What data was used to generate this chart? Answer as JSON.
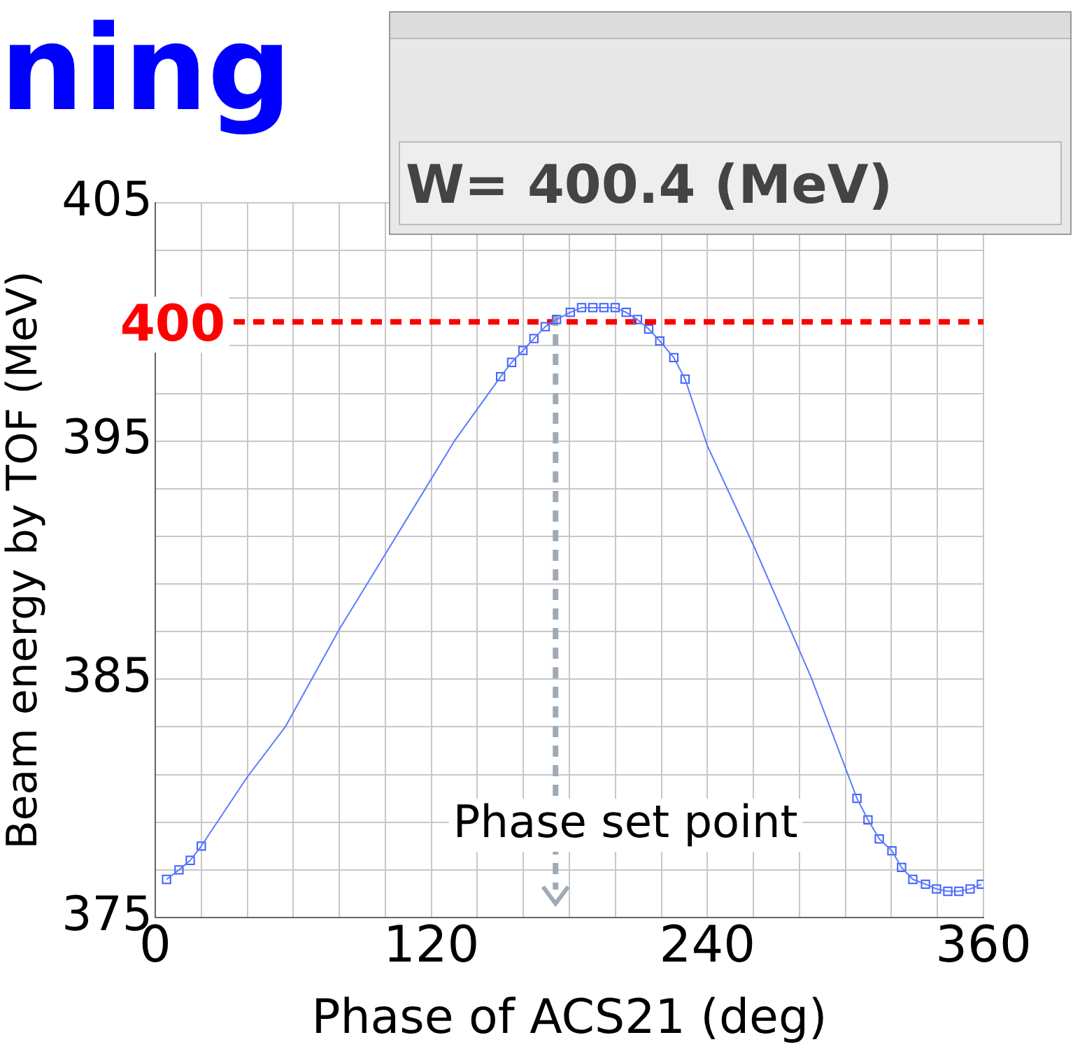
{
  "chart_data": {
    "type": "line",
    "title": "ning",
    "xlabel": "Phase of ACS21 (deg)",
    "ylabel": "Beam energy by TOF (MeV)",
    "annotations": [
      "W= 400.4 (MeV)"
    ],
    "series": [
      {
        "color": "#5b7bff",
        "marker": "none",
        "x": [
          4.9,
          10.3,
          15.2,
          20,
          40,
          56.5,
          80,
          106,
          130,
          150.1,
          154.9,
          159.8,
          164.6,
          169.5,
          174.4,
          180.4,
          185.3,
          190.2,
          195,
          199.9,
          204.7,
          209.6,
          214.5,
          219.3,
          225.4,
          230.3,
          240,
          260.6,
          285,
          305,
          309.8,
          314.7,
          320.2,
          324.4,
          329.3,
          334.8,
          339.6,
          344.5,
          349.3,
          354.2,
          359.1
        ],
        "values": [
          376.6,
          377,
          377.4,
          378,
          380.9,
          383,
          387.1,
          391.2,
          395,
          397.7,
          398.3,
          398.8,
          399.3,
          399.8,
          400.1,
          400.4,
          400.6,
          400.6,
          400.6,
          400.6,
          400.4,
          400.1,
          399.7,
          399.2,
          398.5,
          397.6,
          394.8,
          390.5,
          385.1,
          380,
          379.1,
          378.3,
          377.8,
          377.1,
          376.6,
          376.4,
          376.2,
          376.1,
          376.1,
          376.2,
          376.4
        ]
      },
      {
        "type": "scatter",
        "color": "#4060ff",
        "marker": "square",
        "x": [
          4.9,
          10.3,
          15.2,
          20,
          150.1,
          154.9,
          159.8,
          164.6,
          169.5,
          174.4,
          180.4,
          185.3,
          190.2,
          195,
          199.9,
          204.7,
          209.6,
          214.5,
          219.3,
          225.4,
          230.3,
          305,
          309.8,
          314.7,
          320.2,
          324.4,
          329.3,
          334.8,
          339.6,
          344.5,
          349.3,
          354.2,
          359.1
        ],
        "values": [
          376.6,
          377,
          377.4,
          378,
          397.7,
          398.3,
          398.8,
          399.3,
          399.8,
          400.1,
          400.4,
          400.6,
          400.6,
          400.6,
          400.6,
          400.4,
          400.1,
          399.7,
          399.2,
          398.5,
          397.6,
          380,
          379.1,
          378.3,
          377.8,
          377.1,
          376.6,
          376.4,
          376.2,
          376.1,
          376.1,
          376.2,
          376.4
        ]
      }
    ],
    "xlim": [
      0,
      360
    ],
    "xticks": [
      0,
      {
        "value": 20,
        "label": null
      },
      {
        "value": 40,
        "label": null
      },
      {
        "value": 60,
        "label": null
      },
      {
        "value": 80,
        "label": null
      },
      {
        "value": 100,
        "label": null
      },
      120,
      {
        "value": 140,
        "label": null
      },
      {
        "value": 160,
        "label": null
      },
      {
        "value": 180,
        "label": null
      },
      {
        "value": 200,
        "label": null
      },
      {
        "value": 220,
        "label": null
      },
      240,
      {
        "value": 260,
        "label": null
      },
      {
        "value": 280,
        "label": null
      },
      {
        "value": 300,
        "label": null
      },
      {
        "value": 320,
        "label": null
      },
      {
        "value": 340,
        "label": null
      },
      360
    ],
    "ylim": [
      375,
      405
    ],
    "yticks": [
      375,
      {
        "value": 377,
        "label": null
      },
      {
        "value": 379,
        "label": null
      },
      {
        "value": 381,
        "label": null
      },
      {
        "value": 383,
        "label": null
      },
      385,
      {
        "value": 387,
        "label": null
      },
      {
        "value": 389,
        "label": null
      },
      {
        "value": 391,
        "label": null
      },
      {
        "value": 393,
        "label": null
      },
      395,
      {
        "value": 397,
        "label": null
      },
      {
        "value": 399,
        "label": null
      },
      {
        "value": 401,
        "label": null
      },
      {
        "value": 403,
        "label": null
      },
      405
    ],
    "ref_lines": [
      {
        "axis": "y",
        "value": 400,
        "label": "400",
        "color": "#ff0000",
        "line_style": "dashed"
      },
      {
        "axis": "x",
        "value": 174,
        "label": "Phase set point",
        "color": "#a0aab4",
        "line_style": "dashed"
      }
    ],
    "grid": true,
    "legend": false
  }
}
